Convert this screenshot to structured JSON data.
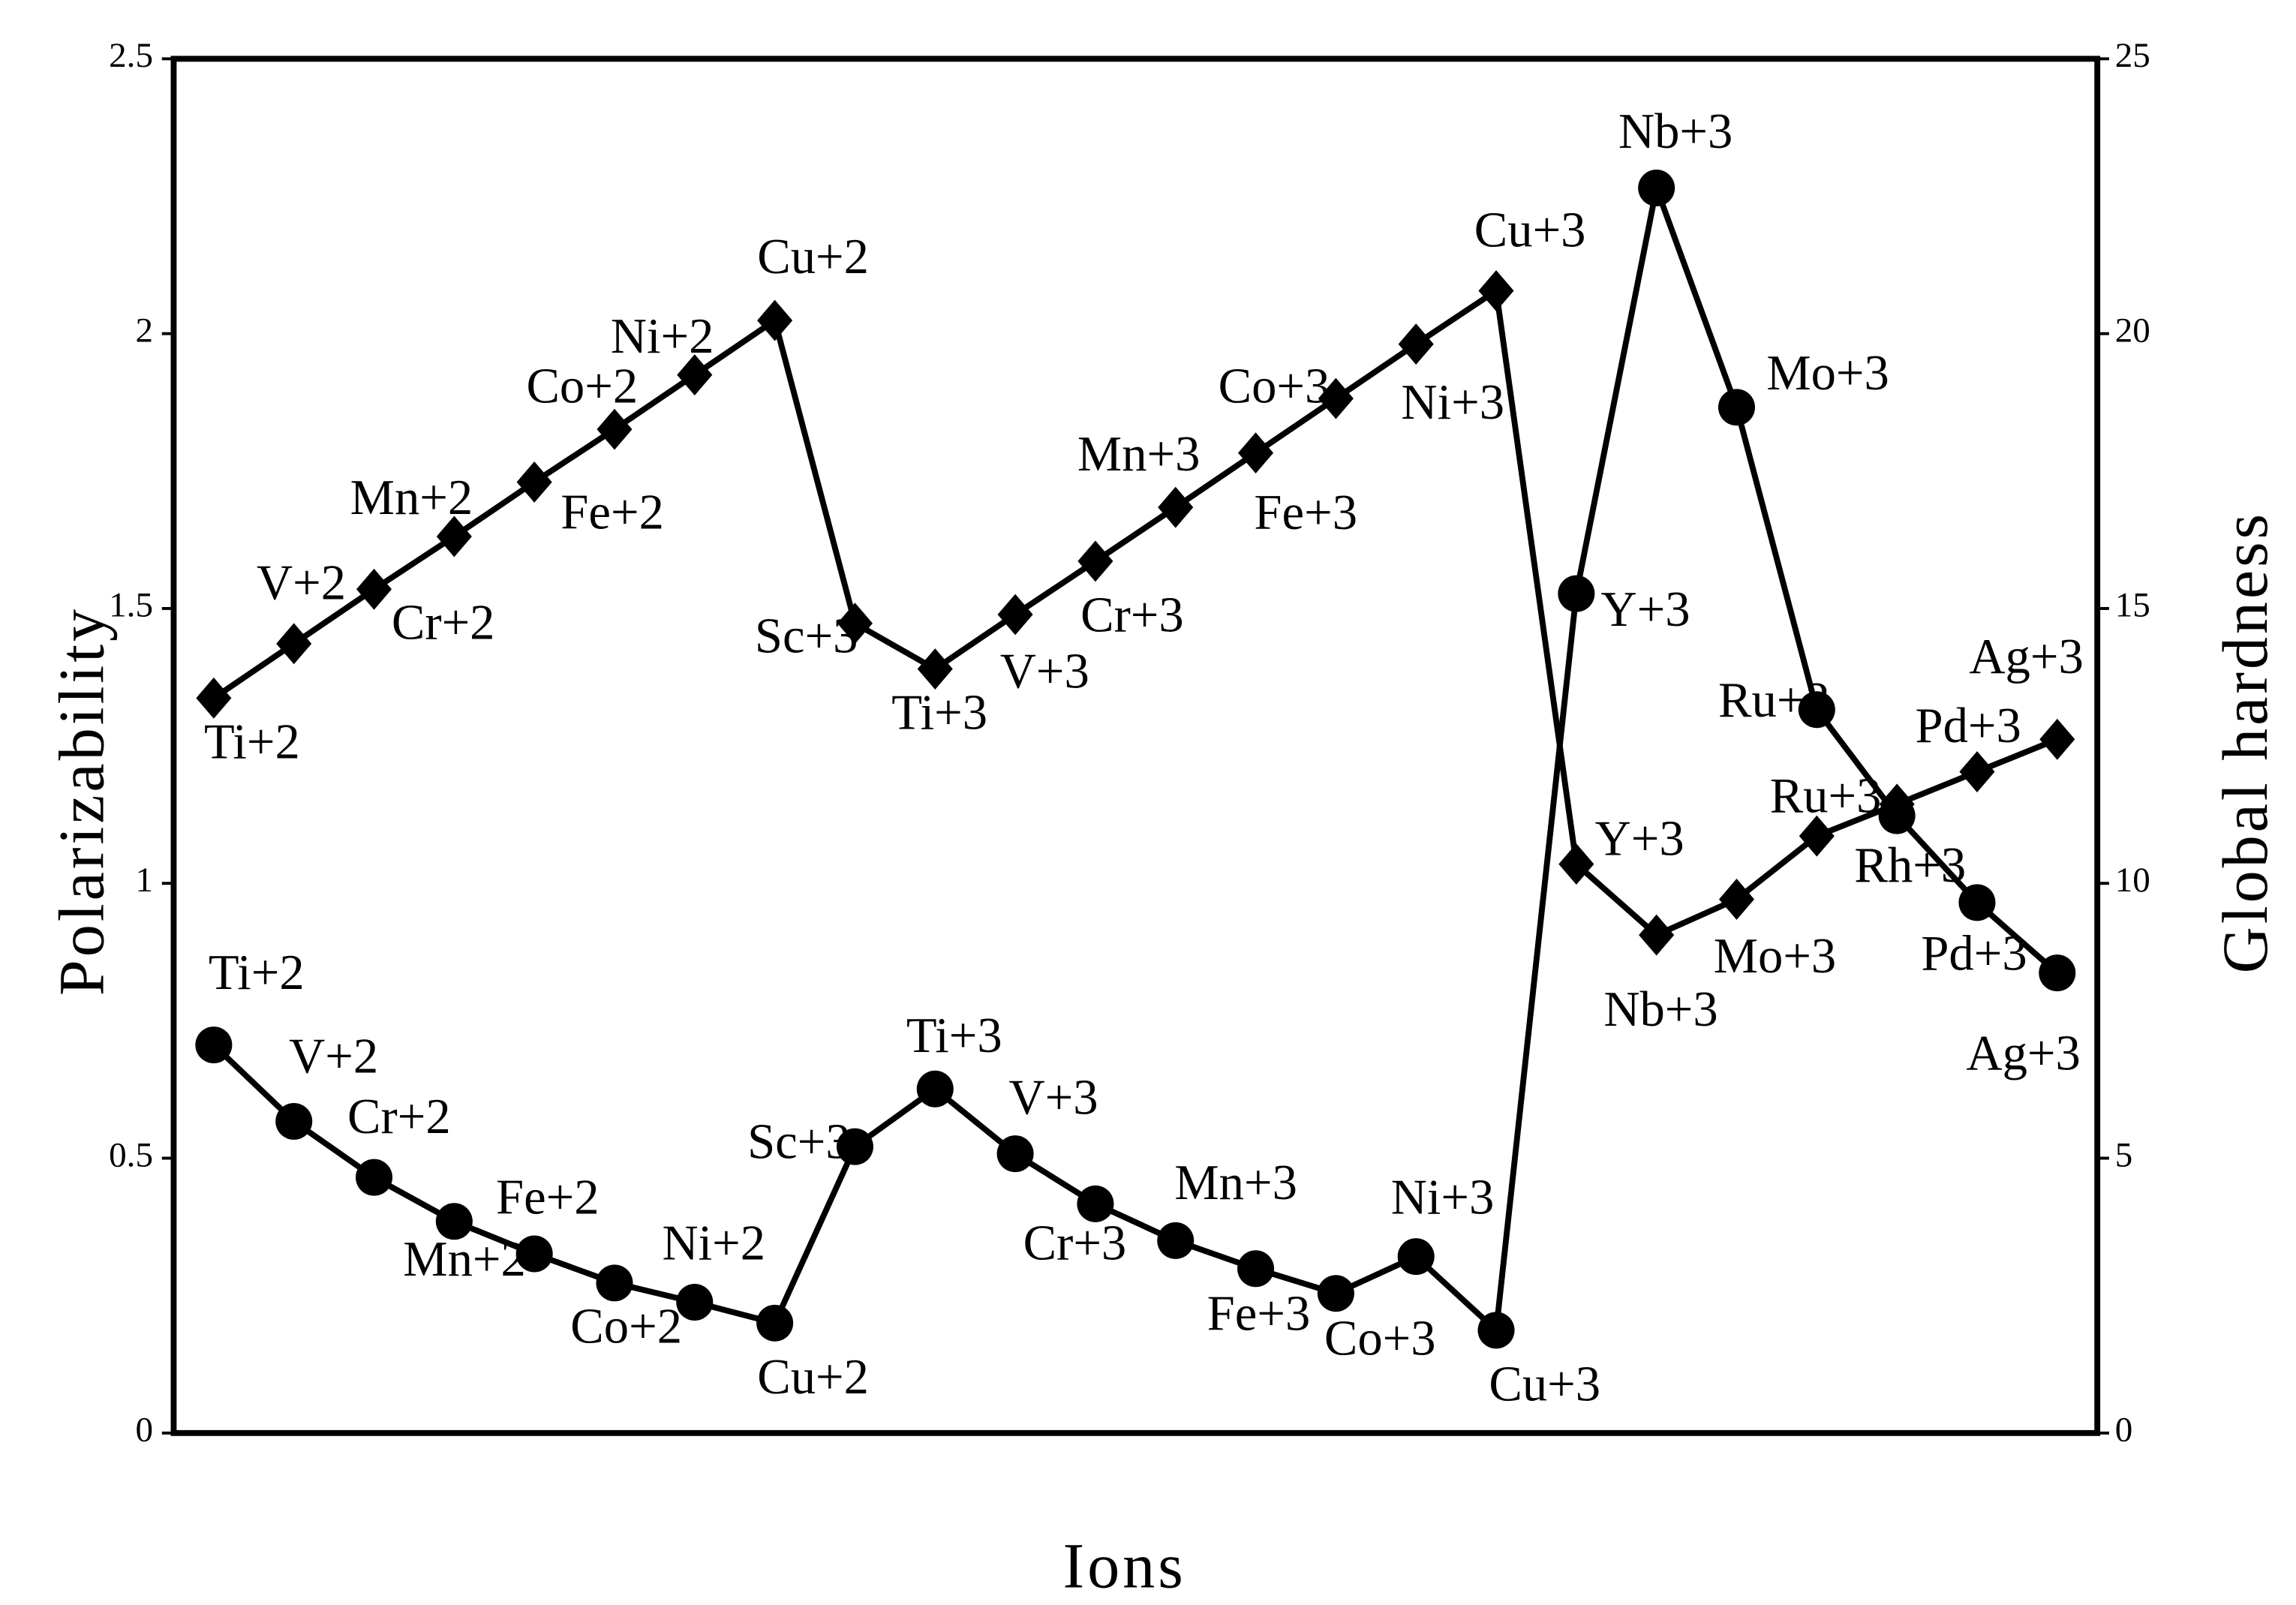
{
  "chart_data": {
    "type": "line",
    "xlabel": "Ions",
    "ylabel": "Polarizability",
    "y2label": "Global hardness",
    "categories": [
      "Ti+2",
      "V+2",
      "Cr+2",
      "Mn+2",
      "Fe+2",
      "Co+2",
      "Ni+2",
      "Cu+2",
      "Sc+3",
      "Ti+3",
      "V+3",
      "Cr+3",
      "Mn+3",
      "Fe+3",
      "Co+3",
      "Ni+3",
      "Cu+3",
      "Y+3",
      "Nb+3",
      "Mo+3",
      "Ru+3",
      "Rh+3",
      "Pd+3",
      "Ag+3"
    ],
    "series": [
      {
        "color": "#000000",
        "marker": "circle",
        "axis": "y",
        "values": [
          0.706,
          0.567,
          0.465,
          0.385,
          0.326,
          0.273,
          0.238,
          0.2,
          0.521,
          0.626,
          0.508,
          0.417,
          0.35,
          0.299,
          0.254,
          0.321,
          0.187,
          1.527,
          2.265,
          1.866,
          1.316,
          1.123,
          0.965,
          0.837
        ]
      },
      {
        "color": "#000000",
        "marker": "diamond",
        "axis": "y2",
        "values": [
          13.37,
          14.36,
          15.35,
          16.31,
          17.3,
          18.26,
          19.25,
          20.24,
          14.73,
          13.9,
          14.89,
          15.86,
          16.84,
          17.83,
          18.82,
          19.81,
          20.78,
          10.35,
          9.06,
          9.71,
          10.86,
          11.44,
          12.03,
          12.62
        ]
      }
    ],
    "ylim": [
      0,
      2.5
    ],
    "yticks": [
      0,
      0.5,
      1,
      1.5,
      2,
      2.5
    ],
    "y2lim": [
      0,
      25
    ],
    "y2ticks": [
      0,
      5,
      10,
      15,
      20,
      25
    ]
  }
}
